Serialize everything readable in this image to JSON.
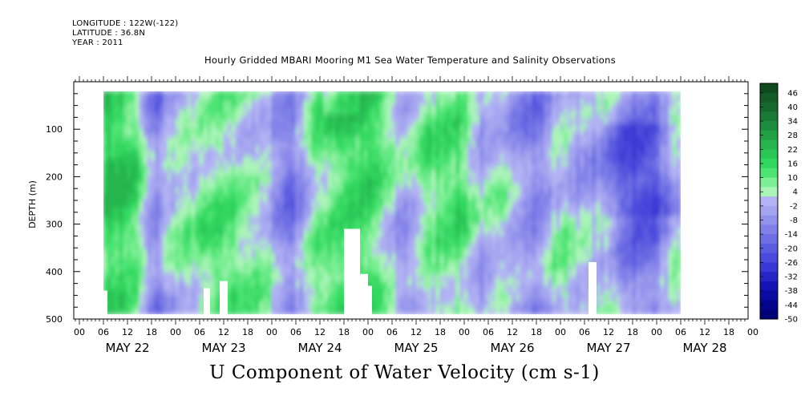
{
  "header": {
    "longitude": "LONGITUDE : 122W(-122)",
    "latitude": "LATITUDE : 36.8N",
    "year": "YEAR : 2011"
  },
  "chart_data": {
    "type": "heatmap",
    "title": "Hourly Gridded MBARI Mooring M1 Sea Water Temperature and Salinity Observations",
    "variable_label": "U Component of Water Velocity (cm s-1)",
    "ylabel": "DEPTH (m)",
    "ylim": [
      500,
      0
    ],
    "y_ticks": [
      100,
      200,
      300,
      400,
      500
    ],
    "y_inverted": true,
    "x_start": "MAY 21 23:00",
    "x_end": "MAY 28 23:00",
    "x_hour_ticks": [
      "00",
      "06",
      "12",
      "18",
      "00",
      "06",
      "12",
      "18",
      "00",
      "06",
      "12",
      "18",
      "00",
      "06",
      "12",
      "18",
      "00",
      "06",
      "12",
      "18",
      "00",
      "06",
      "12",
      "18",
      "00",
      "06",
      "12",
      "18",
      "00"
    ],
    "x_day_labels": [
      "MAY 22",
      "MAY 23",
      "MAY 24",
      "MAY 25",
      "MAY 26",
      "MAY 27",
      "MAY 28"
    ],
    "data_coverage": {
      "start": "MAY 22 06:00",
      "end": "MAY 28 05:00",
      "depth_range": [
        20,
        490
      ]
    },
    "colorbar": {
      "min": -50,
      "max": 50,
      "labels": [
        "46",
        "40",
        "34",
        "28",
        "22",
        "16",
        "10",
        "4",
        "-2",
        "-8",
        "-14",
        "-20",
        "-26",
        "-32",
        "-38",
        "-44",
        "-50"
      ],
      "colors": [
        "#0e4a1e",
        "#125a26",
        "#16692e",
        "#1a7a36",
        "#1e8c3e",
        "#22a046",
        "#26b44e",
        "#2ac656",
        "#30d85e",
        "#4ee474",
        "#7cee94",
        "#aaf4b8",
        "#b2b2f4",
        "#a4a4f0",
        "#9292ec",
        "#8080e8",
        "#6e6ee4",
        "#5c5ce0",
        "#4a4adc",
        "#3838d4",
        "#2626c6",
        "#1414b4",
        "#0a0aa0",
        "#04048c",
        "#000078"
      ]
    },
    "field_summary": "Mostly light-green positive U velocities (0 to +20 cm/s) with vertical bands of light-blue negative values (-2 to -20 cm/s), strongest negatives near MAY 28 at 100-250 m depth."
  }
}
